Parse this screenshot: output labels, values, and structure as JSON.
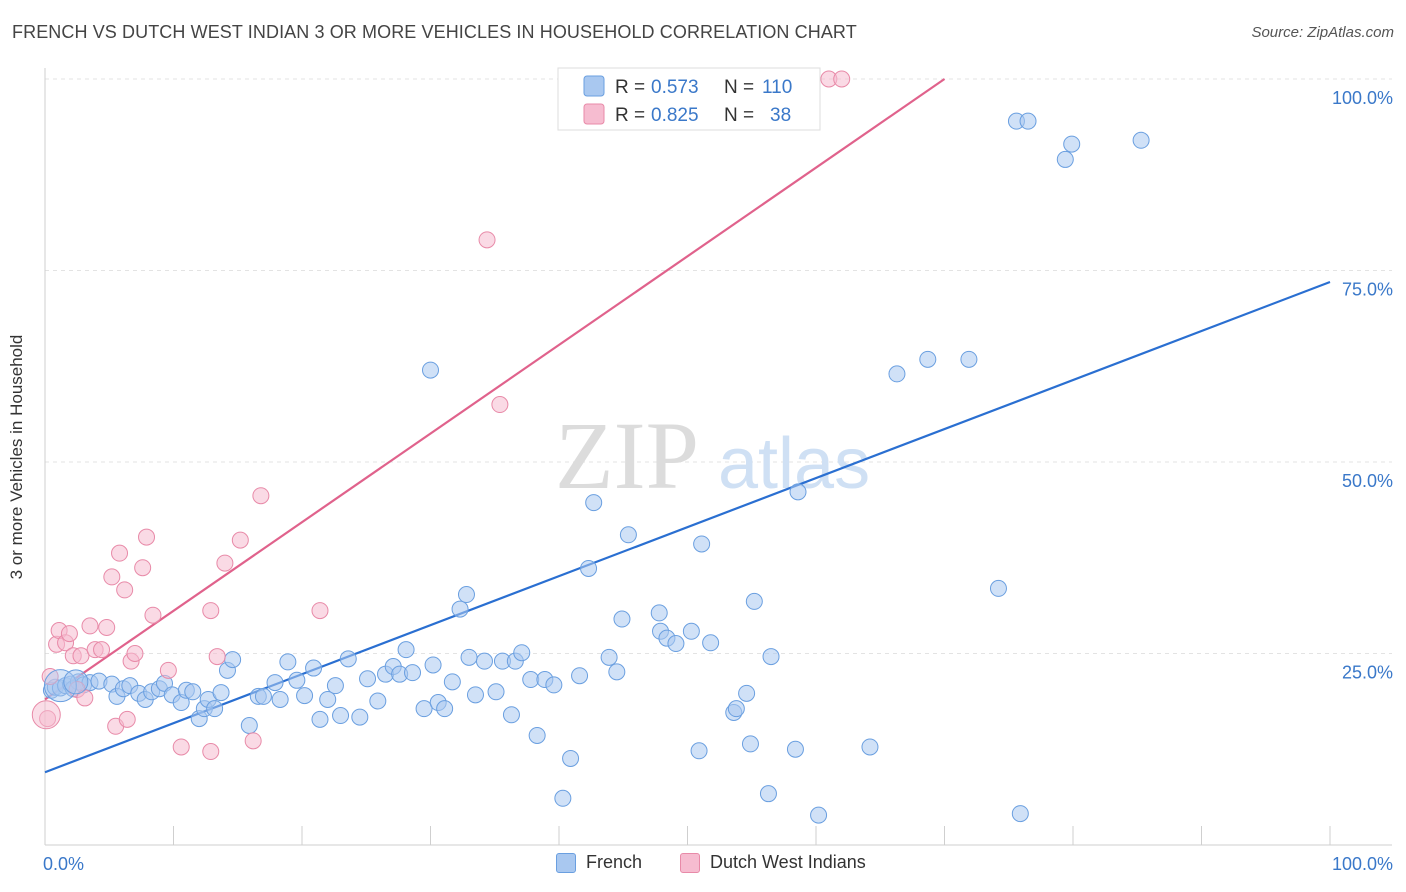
{
  "title": "FRENCH VS DUTCH WEST INDIAN 3 OR MORE VEHICLES IN HOUSEHOLD CORRELATION CHART",
  "source": "Source: ZipAtlas.com",
  "watermark": {
    "zip": "ZIP",
    "atlas": "atlas"
  },
  "colors": {
    "blue_fill": "#a9c8f0",
    "blue_stroke": "#6a9fe0",
    "blue_line": "#2a6fd1",
    "pink_fill": "#f6bcd0",
    "pink_stroke": "#e88aa8",
    "pink_line": "#e0628c",
    "axis_text": "#3a78c9"
  },
  "legend_top": {
    "rows": [
      {
        "r_label": "R = ",
        "r_value": "0.573",
        "n_label": "N = ",
        "n_value": "110"
      },
      {
        "r_label": "R = ",
        "r_value": "0.825",
        "n_label": "N = ",
        "n_value": "38"
      }
    ]
  },
  "legend_bottom": {
    "series1": "French",
    "series2": "Dutch West Indians"
  },
  "chart_data": {
    "type": "scatter",
    "xlabel": "",
    "ylabel": "3 or more Vehicles in Household",
    "xlim": [
      0,
      100
    ],
    "ylim": [
      0,
      100
    ],
    "x_tick_labels": [
      "0.0%",
      "100.0%"
    ],
    "y_tick_labels": [
      "25.0%",
      "50.0%",
      "75.0%",
      "100.0%"
    ],
    "y_tick_values": [
      25,
      50,
      75,
      100
    ],
    "grid": true,
    "series": [
      {
        "name": "French",
        "r": 0.573,
        "n": 110,
        "trend": {
          "x": [
            0,
            100
          ],
          "y": [
            9.5,
            73.5
          ]
        },
        "points": [
          [
            0.5,
            20.2
          ],
          [
            0.8,
            20.6
          ],
          [
            1.2,
            20.5
          ],
          [
            1.6,
            20.8
          ],
          [
            2.0,
            21.0
          ],
          [
            2.2,
            20.4
          ],
          [
            2.6,
            21.3
          ],
          [
            3.0,
            20.9
          ],
          [
            3.5,
            21.2
          ],
          [
            4.2,
            21.4
          ],
          [
            5.2,
            21.0
          ],
          [
            5.6,
            19.4
          ],
          [
            6.1,
            20.4
          ],
          [
            6.6,
            20.8
          ],
          [
            7.3,
            19.8
          ],
          [
            7.8,
            19.0
          ],
          [
            8.3,
            20.0
          ],
          [
            8.9,
            20.4
          ],
          [
            9.3,
            21.1
          ],
          [
            9.9,
            19.6
          ],
          [
            10.6,
            18.6
          ],
          [
            11.0,
            20.2
          ],
          [
            11.5,
            20.0
          ],
          [
            12.0,
            16.5
          ],
          [
            12.4,
            17.8
          ],
          [
            12.7,
            19.0
          ],
          [
            13.2,
            17.8
          ],
          [
            13.7,
            19.9
          ],
          [
            14.2,
            22.8
          ],
          [
            14.6,
            24.2
          ],
          [
            15.9,
            15.6
          ],
          [
            16.6,
            19.4
          ],
          [
            17.0,
            19.4
          ],
          [
            17.9,
            21.2
          ],
          [
            18.3,
            19.0
          ],
          [
            18.9,
            23.9
          ],
          [
            19.6,
            21.5
          ],
          [
            20.2,
            19.5
          ],
          [
            20.9,
            23.1
          ],
          [
            21.4,
            16.4
          ],
          [
            22.0,
            19.0
          ],
          [
            22.6,
            20.8
          ],
          [
            23.0,
            16.9
          ],
          [
            23.6,
            24.3
          ],
          [
            24.5,
            16.7
          ],
          [
            25.1,
            21.7
          ],
          [
            25.9,
            18.8
          ],
          [
            26.5,
            22.3
          ],
          [
            27.1,
            23.3
          ],
          [
            27.6,
            22.3
          ],
          [
            28.1,
            25.5
          ],
          [
            28.6,
            22.5
          ],
          [
            29.5,
            17.8
          ],
          [
            30.2,
            23.5
          ],
          [
            30.6,
            18.6
          ],
          [
            31.1,
            17.8
          ],
          [
            31.7,
            21.3
          ],
          [
            32.3,
            30.8
          ],
          [
            32.8,
            32.7
          ],
          [
            33.5,
            19.6
          ],
          [
            34.2,
            24.0
          ],
          [
            35.1,
            20.0
          ],
          [
            35.6,
            24.0
          ],
          [
            36.3,
            17.0
          ],
          [
            36.6,
            24.0
          ],
          [
            37.1,
            25.1
          ],
          [
            37.8,
            21.6
          ],
          [
            38.3,
            14.3
          ],
          [
            38.9,
            21.6
          ],
          [
            39.6,
            20.9
          ],
          [
            40.3,
            6.1
          ],
          [
            40.9,
            11.3
          ],
          [
            41.6,
            22.1
          ],
          [
            42.3,
            36.1
          ],
          [
            42.7,
            44.7
          ],
          [
            43.9,
            24.5
          ],
          [
            44.5,
            22.6
          ],
          [
            44.9,
            29.5
          ],
          [
            45.4,
            40.5
          ],
          [
            47.8,
            30.3
          ],
          [
            47.9,
            27.9
          ],
          [
            48.4,
            27.0
          ],
          [
            49.1,
            26.3
          ],
          [
            50.3,
            27.9
          ],
          [
            50.9,
            12.3
          ],
          [
            51.1,
            39.3
          ],
          [
            51.8,
            26.4
          ],
          [
            53.6,
            17.3
          ],
          [
            53.8,
            17.8
          ],
          [
            54.6,
            19.8
          ],
          [
            54.9,
            13.2
          ],
          [
            55.2,
            31.8
          ],
          [
            56.3,
            6.7
          ],
          [
            56.5,
            24.6
          ],
          [
            58.4,
            12.5
          ],
          [
            58.6,
            46.1
          ],
          [
            60.2,
            3.9
          ],
          [
            64.2,
            12.8
          ],
          [
            66.3,
            61.5
          ],
          [
            68.7,
            63.4
          ],
          [
            71.9,
            63.4
          ],
          [
            74.2,
            33.5
          ],
          [
            75.6,
            94.5
          ],
          [
            75.9,
            4.1
          ],
          [
            76.5,
            94.5
          ],
          [
            79.4,
            89.5
          ],
          [
            79.9,
            91.5
          ],
          [
            85.3,
            92.0
          ],
          [
            30.0,
            62.0
          ],
          [
            33.0,
            24.5
          ]
        ]
      },
      {
        "name": "Dutch West Indians",
        "r": 0.825,
        "n": 38,
        "trend": {
          "x": [
            0,
            70
          ],
          "y": [
            19.0,
            100
          ]
        },
        "points": [
          [
            0.2,
            16.5
          ],
          [
            0.4,
            22.0
          ],
          [
            0.9,
            26.2
          ],
          [
            1.1,
            28.0
          ],
          [
            1.6,
            26.4
          ],
          [
            1.9,
            27.6
          ],
          [
            2.2,
            24.7
          ],
          [
            2.5,
            20.3
          ],
          [
            2.8,
            24.7
          ],
          [
            3.1,
            19.2
          ],
          [
            3.5,
            28.6
          ],
          [
            3.9,
            25.5
          ],
          [
            4.4,
            25.5
          ],
          [
            4.8,
            28.4
          ],
          [
            5.2,
            35.0
          ],
          [
            5.5,
            15.5
          ],
          [
            5.8,
            38.1
          ],
          [
            6.2,
            33.3
          ],
          [
            6.4,
            16.4
          ],
          [
            6.7,
            24.0
          ],
          [
            7.0,
            25.0
          ],
          [
            7.6,
            36.2
          ],
          [
            7.9,
            40.2
          ],
          [
            8.4,
            30.0
          ],
          [
            9.6,
            22.8
          ],
          [
            10.6,
            12.8
          ],
          [
            12.9,
            30.6
          ],
          [
            12.9,
            12.2
          ],
          [
            13.4,
            24.6
          ],
          [
            14.0,
            36.8
          ],
          [
            15.2,
            39.8
          ],
          [
            16.2,
            13.6
          ],
          [
            16.8,
            45.6
          ],
          [
            21.4,
            30.6
          ],
          [
            34.4,
            79.0
          ],
          [
            35.4,
            57.5
          ],
          [
            61.0,
            100.0
          ],
          [
            62.0,
            100.0
          ]
        ]
      }
    ]
  }
}
